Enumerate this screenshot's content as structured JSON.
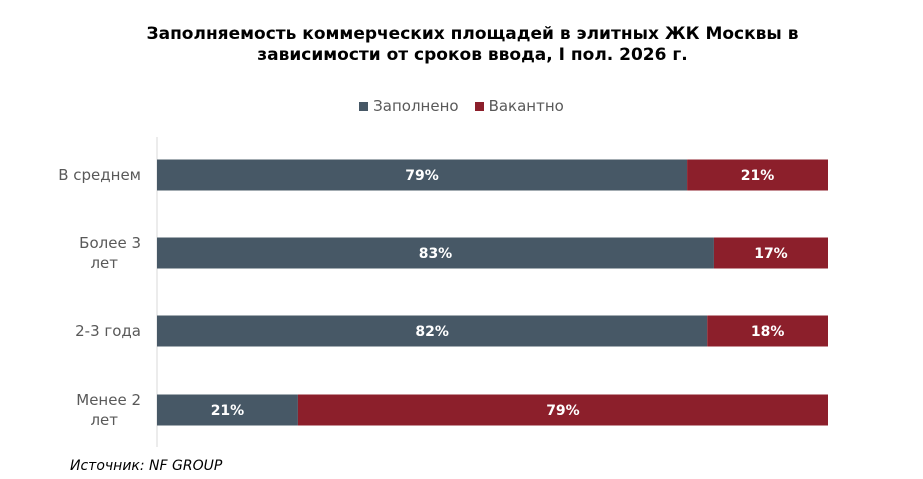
{
  "chart_data": {
    "type": "bar",
    "orientation": "horizontal",
    "stacked": true,
    "title": "Заполняемость коммерческих площадей в элитных ЖК Москвы в зависимости от сроков ввода, I пол. 2026 г.",
    "categories": [
      "В среднем",
      "Более 3 лет",
      "2-3 года",
      "Менее 2 лет"
    ],
    "series": [
      {
        "name": "Заполнено",
        "color": "#475866",
        "values": [
          79,
          83,
          82,
          21
        ]
      },
      {
        "name": "Вакантно",
        "color": "#8c1f2b",
        "values": [
          21,
          17,
          18,
          79
        ]
      }
    ],
    "data_labels": true,
    "xlim": [
      0,
      100
    ],
    "legend": "top-center",
    "grid": false
  },
  "source": "Источник: NF GROUP"
}
